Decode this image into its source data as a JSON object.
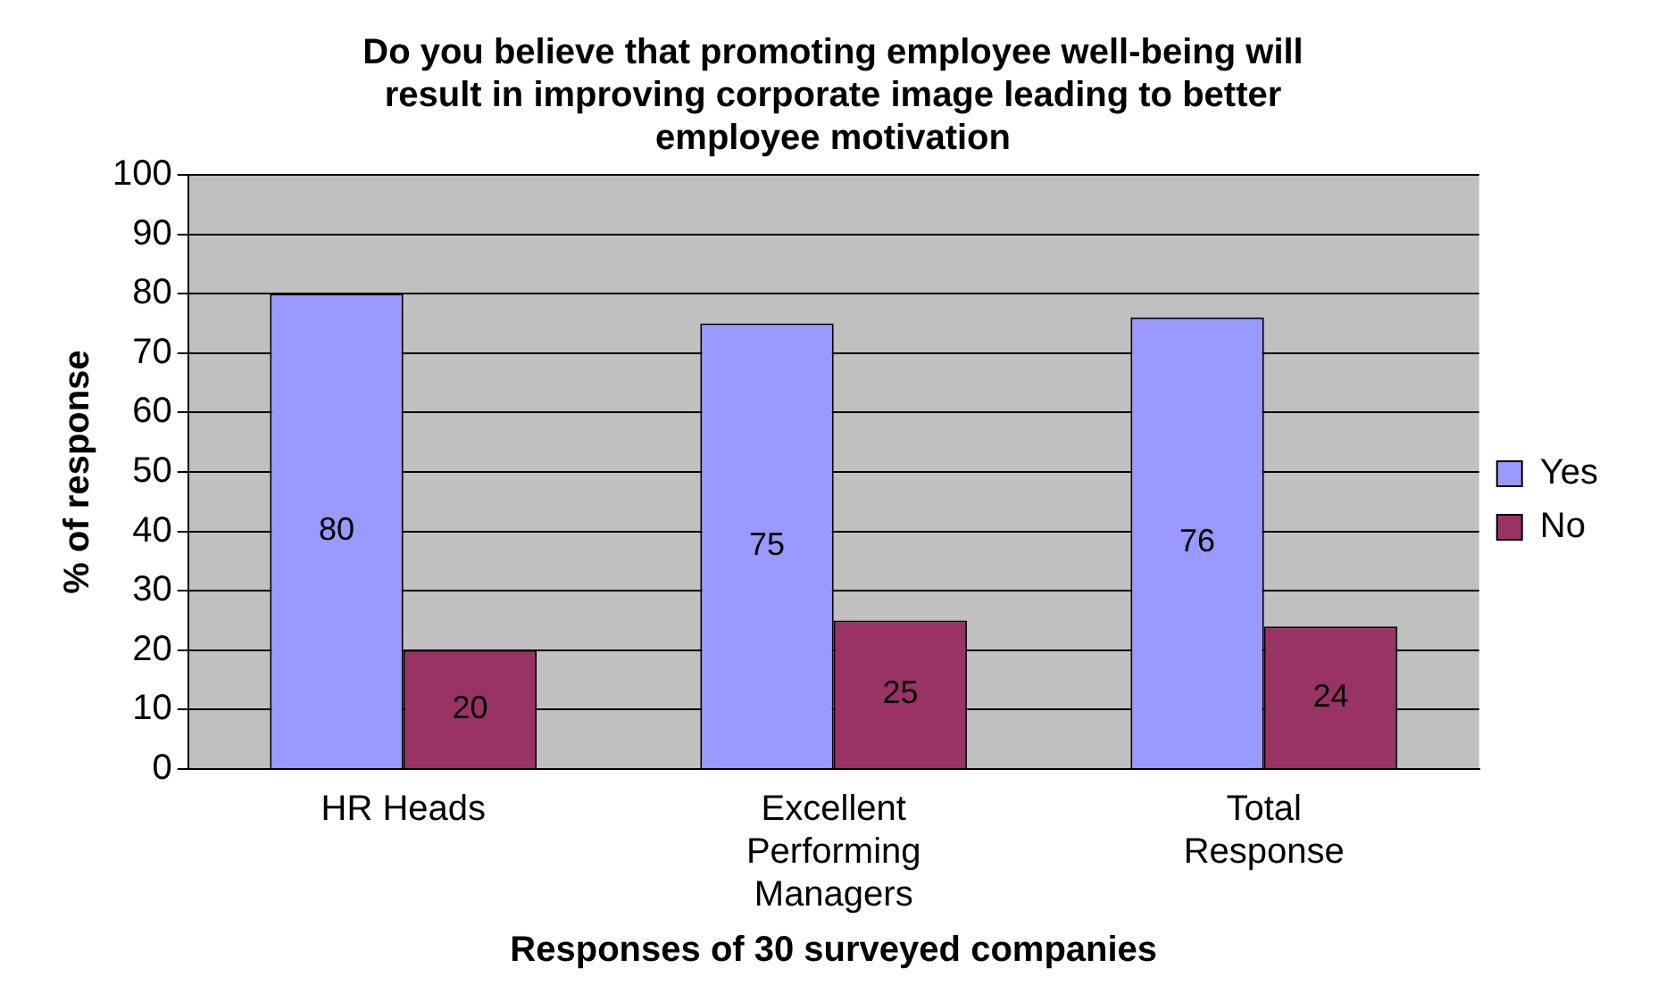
{
  "chart_data": {
    "type": "bar",
    "title": "Do you believe that promoting employee well-being will result in improving corporate image leading to better employee motivation",
    "xlabel": "Responses of 30 surveyed companies",
    "ylabel": "% of response",
    "categories": [
      "HR Heads",
      "Excellent Performing Managers",
      "Total Response"
    ],
    "series": [
      {
        "name": "Yes",
        "color": "#9999ff",
        "values": [
          80,
          75,
          76
        ]
      },
      {
        "name": "No",
        "color": "#993366",
        "values": [
          20,
          25,
          24
        ]
      }
    ],
    "ylim": [
      0,
      100
    ],
    "yticks": [
      0,
      10,
      20,
      30,
      40,
      50,
      60,
      70,
      80,
      90,
      100
    ],
    "grid": "y",
    "legend": "right",
    "data_labels": true
  }
}
